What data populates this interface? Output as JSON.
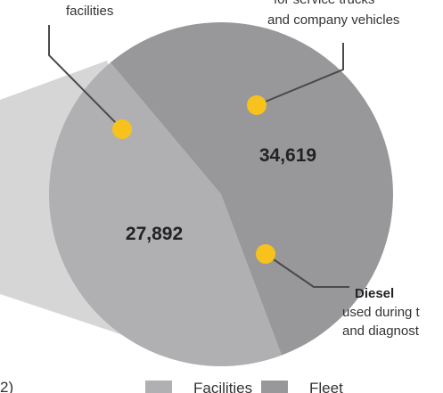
{
  "chart_data": {
    "type": "pie",
    "series": [
      {
        "name": "Facilities",
        "color": "#b0b0b2",
        "values": [
          27892
        ],
        "value_labels": [
          "27,892"
        ]
      },
      {
        "name": "Fleet",
        "color": "#98989b",
        "values": [
          34619
        ],
        "value_labels": [
          "34,619"
        ]
      }
    ],
    "annotations": [
      {
        "lines": [
          "facilities"
        ]
      },
      {
        "lines": [
          "for service trucks",
          "and company vehicles"
        ]
      },
      {
        "title": "Diesel",
        "lines": [
          "used during t",
          "and diagnost"
        ]
      }
    ],
    "legend_prefix": "2)"
  }
}
